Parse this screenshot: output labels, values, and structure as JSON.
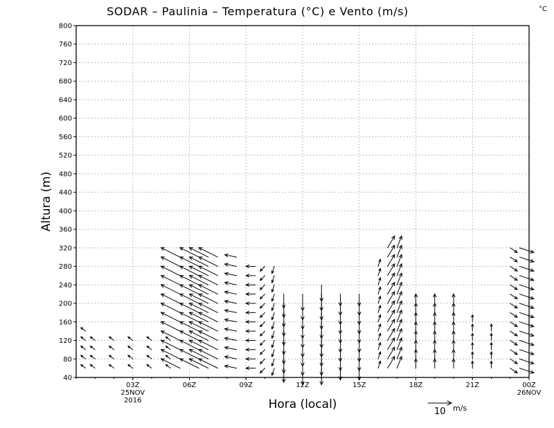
{
  "chart_data": {
    "type": "vector-field",
    "title": "SODAR – Paulinia – Temperatura (°C) e Vento (m/s)",
    "corner_unit": "°C",
    "xlabel": "Hora (local)",
    "ylabel": "Altura (m)",
    "y_axis": {
      "min": 40,
      "max": 800,
      "step": 40
    },
    "x_axis": {
      "start_hour": 0,
      "end_hour": 24,
      "ticks": [
        {
          "hour": 3,
          "label": "03Z",
          "sub1": "25NOV",
          "sub2": "2016"
        },
        {
          "hour": 6,
          "label": "06Z"
        },
        {
          "hour": 9,
          "label": "09Z"
        },
        {
          "hour": 12,
          "label": "12Z"
        },
        {
          "hour": 15,
          "label": "15Z"
        },
        {
          "hour": 18,
          "label": "18Z"
        },
        {
          "hour": 21,
          "label": "21Z"
        },
        {
          "hour": 24,
          "label": "00Z",
          "sub1": "26NOV"
        }
      ]
    },
    "reference_vector": {
      "value": "10",
      "unit": "m/s"
    },
    "grid": true,
    "wind_profiles": [
      {
        "hour": 0.5,
        "max_height": 140,
        "u": -2,
        "v": 1.5
      },
      {
        "hour": 1,
        "max_height": 120,
        "u": -2,
        "v": 1.5
      },
      {
        "hour": 2,
        "max_height": 120,
        "u": -2,
        "v": 1.5
      },
      {
        "hour": 3,
        "max_height": 120,
        "u": -2,
        "v": 1.5
      },
      {
        "hour": 4,
        "max_height": 120,
        "u": -2,
        "v": 1.5
      },
      {
        "hour": 5,
        "max_height": 120,
        "u": -2,
        "v": 1.5
      },
      {
        "hour": 5.5,
        "max_height": 300,
        "u": -8,
        "v": 4
      },
      {
        "hour": 6.5,
        "max_height": 300,
        "u": -8,
        "v": 4
      },
      {
        "hour": 7,
        "max_height": 300,
        "u": -8,
        "v": 4
      },
      {
        "hour": 7.5,
        "max_height": 300,
        "u": -8,
        "v": 4
      },
      {
        "hour": 8.5,
        "max_height": 300,
        "u": -5,
        "v": 1
      },
      {
        "hour": 9.5,
        "max_height": 280,
        "u": -4,
        "v": 0
      },
      {
        "hour": 10,
        "max_height": 280,
        "u": -2,
        "v": -2
      },
      {
        "hour": 10.5,
        "max_height": 280,
        "u": -1,
        "v": -3
      },
      {
        "hour": 11,
        "max_height": 220,
        "u": 0,
        "v": -6
      },
      {
        "hour": 12,
        "max_height": 220,
        "u": 0,
        "v": -7
      },
      {
        "hour": 13,
        "max_height": 240,
        "u": 0,
        "v": -7
      },
      {
        "hour": 14,
        "max_height": 220,
        "u": 0,
        "v": -5
      },
      {
        "hour": 15,
        "max_height": 220,
        "u": 0,
        "v": -5
      },
      {
        "hour": 16,
        "max_height": 280,
        "u": 1,
        "v": 3
      },
      {
        "hour": 16.5,
        "max_height": 320,
        "u": 3,
        "v": 5
      },
      {
        "hour": 17,
        "max_height": 320,
        "u": 2,
        "v": 5
      },
      {
        "hour": 18,
        "max_height": 200,
        "u": 0,
        "v": 4
      },
      {
        "hour": 19,
        "max_height": 200,
        "u": 0,
        "v": 4
      },
      {
        "hour": 20,
        "max_height": 200,
        "u": 0,
        "v": 4
      },
      {
        "hour": 21,
        "max_height": 160,
        "u": 0,
        "v": 3
      },
      {
        "hour": 22,
        "max_height": 140,
        "u": 0,
        "v": 3
      },
      {
        "hour": 23,
        "max_height": 320,
        "u": 3,
        "v": -2
      },
      {
        "hour": 23.5,
        "max_height": 320,
        "u": 6,
        "v": -2
      }
    ]
  }
}
